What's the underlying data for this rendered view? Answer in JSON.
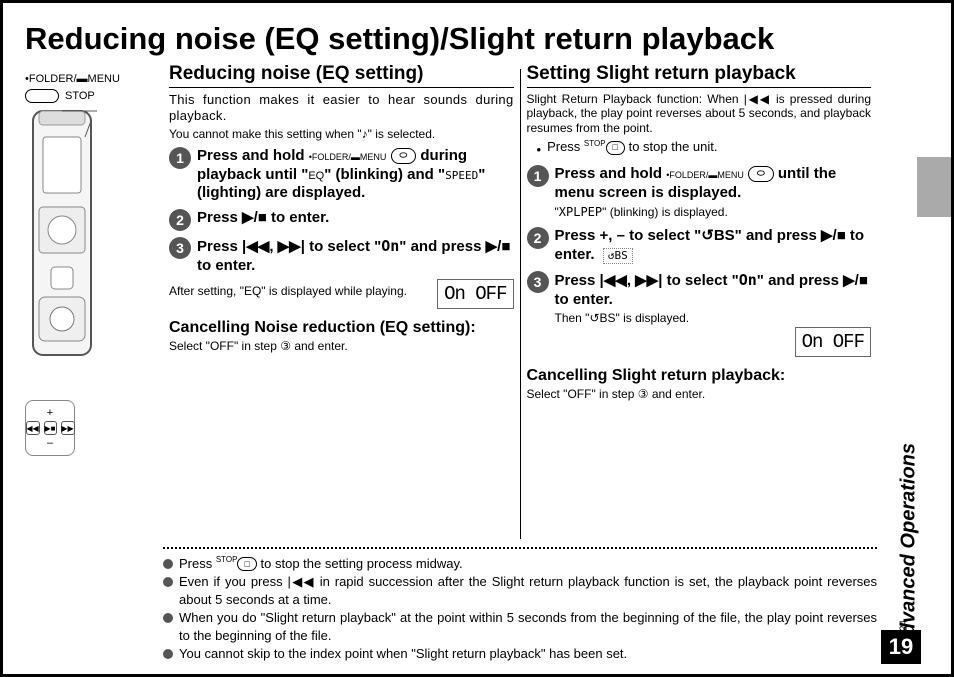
{
  "page_title": "Reducing noise (EQ setting)/Slight return playback",
  "doc_code": "RQT9124",
  "page_number": "19",
  "section_label": "Advanced Operations",
  "device": {
    "folder_menu_label": "•FOLDER/▬MENU",
    "stop_label": "STOP"
  },
  "left": {
    "title": "Reducing noise (EQ setting)",
    "intro": "This function makes it easier to hear sounds during playback.",
    "note": "You cannot make this setting when \"♪\" is selected.",
    "steps": [
      {
        "n": "1",
        "html": "Press and hold <span class='folder-menu'>•FOLDER/▬MENU</span> <span class='button-label'>⬭</span> during playback until \"<span class='inline-icon'>EQ</span>\" (blinking) and \"<span class='inline-icon' style='font-family:monospace'>SPEED</span>\" (lighting) are displayed."
      },
      {
        "n": "2",
        "html": "Press <span class='sym'>▶/■</span> to enter."
      },
      {
        "n": "3",
        "html": "Press <span class='sym'>|◀◀, ▶▶|</span> to select \"<span style='font-family:monospace'>On</span>\" and press <span class='sym'>▶/■</span> to enter."
      }
    ],
    "after": "After setting, \"EQ\" is displayed while playing.",
    "lcd": "On OFF",
    "cancel_title": "Cancelling Noise reduction (EQ setting):",
    "cancel_body": "Select \"OFF\" in step ③ and enter."
  },
  "right": {
    "title": "Setting Slight return playback",
    "intro": "Slight Return Playback function: When |◀◀ is pressed during playback, the play point reverses about 5 seconds, and playback resumes from the point.",
    "tip": "Press  STOP  to stop the unit.",
    "steps": [
      {
        "n": "1",
        "html": "Press and hold <span class='folder-menu'>•FOLDER/▬MENU</span> <span class='button-label'>⬭</span> until the menu screen is displayed.<br><span class='step-sub' style='font-weight:normal'>\"<span style='font-family:monospace'>XPLPEP</span>\" (blinking) is displayed.</span>"
      },
      {
        "n": "2",
        "html": "Press +, – to select \"↺BS\" and press <span class='sym'>▶/■</span> to enter. &nbsp;<span class='inline-icon' style='border:1px dotted #888;padding:0 4px;font-family:monospace;font-size:11px'>↺BS</span>"
      },
      {
        "n": "3",
        "html": "Press <span class='sym'>|◀◀, ▶▶|</span> to select \"<span style='font-family:monospace'>On</span>\" and press <span class='sym'>▶/■</span> to enter.<br><span class='step-sub' style='font-weight:normal'>Then \"↺BS\" is displayed.</span>"
      }
    ],
    "lcd": "On OFF",
    "cancel_title": "Cancelling Slight return playback:",
    "cancel_body": "Select \"OFF\" in step ③ and enter."
  },
  "footer_bullets": [
    "Press  STOP  to stop the setting process midway.",
    "Even if you press |◀◀ in rapid succession after the Slight return playback function is set, the playback point reverses about 5 seconds at a time.",
    "When you do \"Slight return playback\" at the point within 5 seconds from the beginning of the file, the play point reverses to the beginning of the file.",
    "You cannot skip to the index point when \"Slight return playback\" has been set."
  ],
  "colors": {
    "bullet": "#555555",
    "tab": "#aaaaaa"
  }
}
